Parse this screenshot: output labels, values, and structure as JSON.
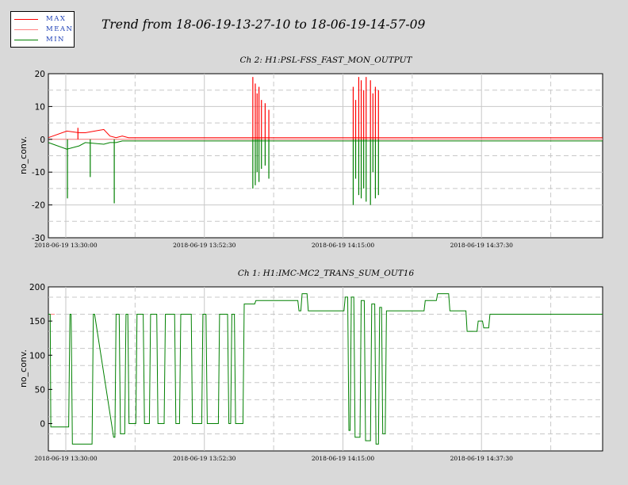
{
  "main_title": "Trend from 18-06-19-13-27-10 to 18-06-19-14-57-09",
  "legend": [
    {
      "label": "MAX",
      "color": "#ff0000"
    },
    {
      "label": "MEAN",
      "color": "#ff8080"
    },
    {
      "label": "MIN",
      "color": "#008000"
    }
  ],
  "colors": {
    "max": "#ff0000",
    "mean": "#ff8080",
    "min": "#008000",
    "grid": "#c8c8c8",
    "background": "#d9d9d9",
    "plot": "#ffffff"
  },
  "chart_data": [
    {
      "type": "line",
      "title": "Ch 2: H1:PSL-FSS_FAST_MON_OUTPUT",
      "ylabel": "no_conv.",
      "xlabel": "",
      "ylim": [
        -30,
        20
      ],
      "yticks": [
        20,
        10,
        0,
        -10,
        -20,
        -30
      ],
      "xlim": [
        "2018-06-19 13:27:10",
        "2018-06-19 14:57:09"
      ],
      "xticks": [
        "2018-06-19 13:30:00",
        "2018-06-19 13:52:30",
        "2018-06-19 14:15:00",
        "2018-06-19 14:37:30"
      ],
      "grid": true,
      "series": [
        {
          "name": "MAX",
          "x": [
            0,
            3,
            5,
            6,
            9,
            10,
            11,
            12,
            13,
            14,
            15,
            16,
            17,
            20,
            24,
            25,
            26,
            27,
            28,
            30,
            32,
            34,
            36,
            38,
            40,
            42,
            44,
            45,
            46,
            47,
            48,
            50,
            52,
            54,
            56,
            57,
            58,
            59,
            60,
            62,
            64,
            66,
            68,
            70,
            72,
            74,
            76,
            78,
            80,
            82,
            84,
            86,
            88,
            90
          ],
          "values": [
            0.5,
            2.5,
            2,
            2,
            3,
            1,
            0.5,
            1,
            0.5,
            0.5,
            0.5,
            0.5,
            0.5,
            0.5,
            0.5,
            0.5,
            0.5,
            0.5,
            0.5,
            0.5,
            0.5,
            0.5,
            0.5,
            0.5,
            0.5,
            0.5,
            0.5,
            0.5,
            0.5,
            0.5,
            0.5,
            0.5,
            0.5,
            0.5,
            0.5,
            0.5,
            0.5,
            0.5,
            0.5,
            0.5,
            0.5,
            0.5,
            0.5,
            0.5,
            0.5,
            0.5,
            0.5,
            0.5,
            0.5,
            0.5,
            0.5,
            0.5,
            0.5,
            0.5
          ]
        },
        {
          "name": "MEAN",
          "x": [
            0,
            90
          ],
          "values": [
            0,
            0
          ]
        },
        {
          "name": "MIN",
          "x": [
            0,
            3,
            5,
            6,
            9,
            10,
            11,
            12,
            13,
            14,
            15,
            16,
            17,
            20,
            24,
            25,
            26,
            27,
            28,
            30,
            32,
            34,
            36,
            38,
            40,
            42,
            44,
            45,
            46,
            47,
            48,
            50,
            52,
            54,
            56,
            57,
            58,
            59,
            60,
            62,
            64,
            66,
            68,
            70,
            72,
            74,
            76,
            78,
            80,
            82,
            84,
            86,
            88,
            90
          ],
          "values": [
            -1,
            -3,
            -2,
            -1,
            -1.5,
            -1,
            -1,
            -0.5,
            -0.5,
            -0.5,
            -0.5,
            -0.5,
            -0.5,
            -0.5,
            -0.5,
            -0.5,
            -0.5,
            -0.5,
            -0.5,
            -0.5,
            -0.5,
            -0.5,
            -0.5,
            -0.5,
            -0.5,
            -0.5,
            -0.5,
            -0.5,
            -0.5,
            -0.5,
            -0.5,
            -0.5,
            -0.5,
            -0.5,
            -0.5,
            -0.5,
            -0.5,
            -0.5,
            -0.5,
            -0.5,
            -0.5,
            -0.5,
            -0.5,
            -0.5,
            -0.5,
            -0.5,
            -0.5,
            -0.5,
            -0.5,
            -0.5,
            -0.5,
            -0.5,
            -0.5,
            -0.5
          ]
        }
      ],
      "spikes": [
        {
          "x": 3.1,
          "series": "MIN",
          "value": -18
        },
        {
          "x": 4.8,
          "series": "MAX",
          "value": 3.5
        },
        {
          "x": 6.8,
          "series": "MIN",
          "value": -11.5
        },
        {
          "x": 10.7,
          "series": "MIN",
          "value": -19.5
        },
        {
          "x": 33.2,
          "series": "MAX",
          "value": 19
        },
        {
          "x": 33.6,
          "series": "MAX",
          "value": 17
        },
        {
          "x": 33.9,
          "series": "MAX",
          "value": 14
        },
        {
          "x": 34.2,
          "series": "MAX",
          "value": 16
        },
        {
          "x": 34.6,
          "series": "MAX",
          "value": 12
        },
        {
          "x": 35.2,
          "series": "MAX",
          "value": 11
        },
        {
          "x": 35.8,
          "series": "MAX",
          "value": 9
        },
        {
          "x": 33.2,
          "series": "MIN",
          "value": -15
        },
        {
          "x": 33.6,
          "series": "MIN",
          "value": -14
        },
        {
          "x": 33.9,
          "series": "MIN",
          "value": -10
        },
        {
          "x": 34.2,
          "series": "MIN",
          "value": -13
        },
        {
          "x": 34.6,
          "series": "MIN",
          "value": -9
        },
        {
          "x": 35.2,
          "series": "MIN",
          "value": -8
        },
        {
          "x": 35.8,
          "series": "MIN",
          "value": -12
        },
        {
          "x": 49.5,
          "series": "MAX",
          "value": 16
        },
        {
          "x": 49.9,
          "series": "MAX",
          "value": 12
        },
        {
          "x": 50.4,
          "series": "MAX",
          "value": 19
        },
        {
          "x": 50.8,
          "series": "MAX",
          "value": 18
        },
        {
          "x": 51.2,
          "series": "MAX",
          "value": 15
        },
        {
          "x": 51.6,
          "series": "MAX",
          "value": 19
        },
        {
          "x": 52.3,
          "series": "MAX",
          "value": 18
        },
        {
          "x": 52.7,
          "series": "MAX",
          "value": 14
        },
        {
          "x": 53.1,
          "series": "MAX",
          "value": 16
        },
        {
          "x": 53.6,
          "series": "MAX",
          "value": 15
        },
        {
          "x": 49.5,
          "series": "MIN",
          "value": -20
        },
        {
          "x": 49.9,
          "series": "MIN",
          "value": -12
        },
        {
          "x": 50.4,
          "series": "MIN",
          "value": -17
        },
        {
          "x": 50.8,
          "series": "MIN",
          "value": -18
        },
        {
          "x": 51.2,
          "series": "MIN",
          "value": -15
        },
        {
          "x": 51.6,
          "series": "MIN",
          "value": -19
        },
        {
          "x": 52.3,
          "series": "MIN",
          "value": -20
        },
        {
          "x": 52.7,
          "series": "MIN",
          "value": -10
        },
        {
          "x": 53.1,
          "series": "MIN",
          "value": -18
        },
        {
          "x": 53.6,
          "series": "MIN",
          "value": -17
        }
      ]
    },
    {
      "type": "line",
      "title": "Ch 1: H1:IMC-MC2_TRANS_SUM_OUT16",
      "ylabel": "no_conv.",
      "xlabel": "",
      "ylim": [
        -40,
        200
      ],
      "yticks": [
        200,
        150,
        100,
        50,
        0
      ],
      "xlim": [
        "2018-06-19 13:27:10",
        "2018-06-19 14:57:09"
      ],
      "xticks": [
        "2018-06-19 13:30:00",
        "2018-06-19 13:52:30",
        "2018-06-19 14:15:00",
        "2018-06-19 14:37:30"
      ],
      "grid": true,
      "series": [
        {
          "name": "MAX",
          "x": [
            0,
            1
          ],
          "values": [
            160,
            160
          ]
        },
        {
          "name": "MEAN",
          "x": [
            0,
            1
          ],
          "values": [
            160,
            160
          ]
        },
        {
          "name": "MIN",
          "x": [
            0,
            0.3,
            0.4,
            3.3,
            3.5,
            3.7,
            3.9,
            7.1,
            7.3,
            7.5,
            10.6,
            10.8,
            11.0,
            11.5,
            11.7,
            12.4,
            12.6,
            12.9,
            13.1,
            14.2,
            14.4,
            15.4,
            15.6,
            16.4,
            16.6,
            17.6,
            17.8,
            18.8,
            19.0,
            20.5,
            20.7,
            21.3,
            21.5,
            23.2,
            23.4,
            24.9,
            25.1,
            25.6,
            25.8,
            27.6,
            27.8,
            29.1,
            29.3,
            29.6,
            29.8,
            30.2,
            30.4,
            31.6,
            31.8,
            33.5,
            33.7,
            34.0,
            34.2,
            35.0,
            35.2,
            35.6,
            35.8,
            38.0,
            38.2,
            40.5,
            40.7,
            41.0,
            41.2,
            42.0,
            42.2,
            44.0,
            44.2,
            48.0,
            48.2,
            48.6,
            48.8,
            49.0,
            49.2,
            49.6,
            49.8,
            50.6,
            50.8,
            51.3,
            51.5,
            52.3,
            52.5,
            53.0,
            53.2,
            53.6,
            53.8,
            54.1,
            54.3,
            54.7,
            54.9,
            56.0,
            56.2,
            61.0,
            61.2,
            63.0,
            63.2,
            65.0,
            65.2,
            67.0,
            67.2,
            67.8,
            68.0,
            69.6,
            69.8,
            70.5,
            70.7,
            71.5,
            71.7,
            72.5,
            72.7,
            90
          ],
          "values": [
            160,
            160,
            -5,
            -5,
            160,
            160,
            -30,
            -30,
            160,
            160,
            -20,
            -20,
            160,
            160,
            -15,
            -15,
            160,
            160,
            0,
            0,
            160,
            160,
            0,
            0,
            160,
            160,
            0,
            0,
            160,
            160,
            0,
            0,
            160,
            160,
            0,
            0,
            160,
            160,
            0,
            0,
            160,
            160,
            0,
            0,
            160,
            160,
            0,
            0,
            175,
            175,
            180,
            180,
            180,
            180,
            180,
            180,
            180,
            180,
            180,
            180,
            165,
            165,
            190,
            190,
            165,
            165,
            165,
            165,
            185,
            185,
            -10,
            -10,
            185,
            185,
            -20,
            -20,
            180,
            180,
            -25,
            -25,
            175,
            175,
            -30,
            -30,
            170,
            170,
            -15,
            -15,
            165,
            165,
            165,
            165,
            180,
            180,
            190,
            190,
            165,
            165,
            165,
            165,
            135,
            135,
            150,
            150,
            140,
            140,
            160,
            160,
            160,
            160
          ]
        }
      ]
    }
  ]
}
